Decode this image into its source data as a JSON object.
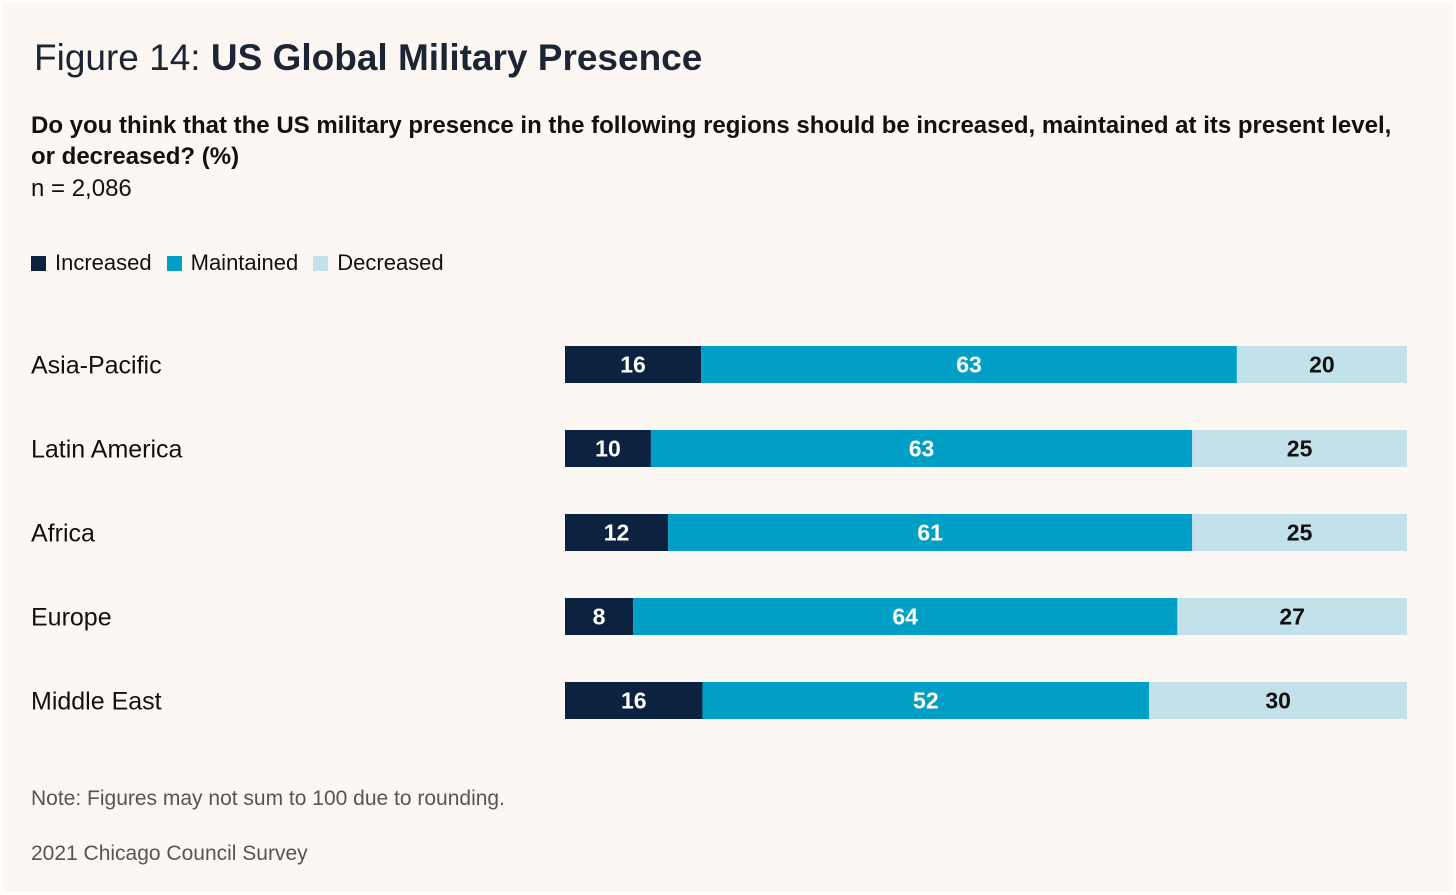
{
  "title": {
    "prefix": "Figure 14: ",
    "main": "US Global Military Presence"
  },
  "question": "Do you think that the US military presence in the following regions should be increased, maintained at its present level, or decreased? (%)",
  "sample": "n = 2,086",
  "note": "Note: Figures may not sum to 100 due to rounding.",
  "source": "2021 Chicago Council Survey",
  "colors": {
    "increased": "#0b2341",
    "maintained": "#00a0c6",
    "decreased": "#c2e1ea",
    "label_dark_bg": "#ffffff",
    "label_light_bg": "#111111"
  },
  "chart_data": {
    "type": "bar",
    "orientation": "horizontal",
    "stacked": true,
    "legend_position": "top-left",
    "categories": [
      "Asia-Pacific",
      "Latin America",
      "Africa",
      "Europe",
      "Middle East"
    ],
    "series": [
      {
        "name": "Increased",
        "values": [
          16,
          10,
          12,
          8,
          16
        ]
      },
      {
        "name": "Maintained",
        "values": [
          63,
          63,
          61,
          64,
          52
        ]
      },
      {
        "name": "Decreased",
        "values": [
          20,
          25,
          25,
          27,
          30
        ]
      }
    ],
    "grid": false
  }
}
